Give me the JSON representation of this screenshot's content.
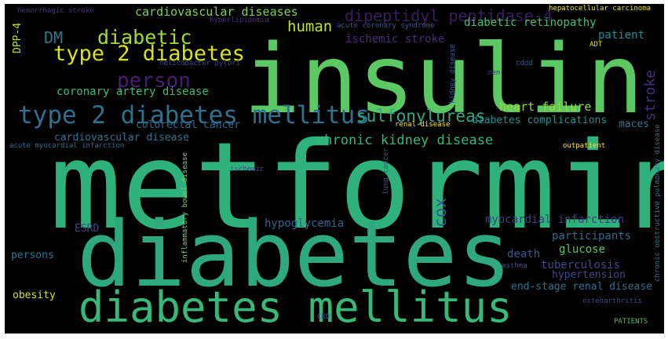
{
  "words": [
    {
      "text": "metformin",
      "color": "#2fb17b"
    },
    {
      "text": "insulin",
      "color": "#5cc863"
    },
    {
      "text": "diabetes",
      "color": "#2ea97f"
    },
    {
      "text": "diabetes mellitus",
      "color": "#37b878"
    },
    {
      "text": "type 2 diabetes mellitus",
      "color": "#2d718e"
    },
    {
      "text": "type 2 diabetes",
      "color": "#d8e219"
    },
    {
      "text": "person",
      "color": "#481d6f"
    },
    {
      "text": "diabetic",
      "color": "#a5db36"
    },
    {
      "text": "DM",
      "color": "#2a788e"
    },
    {
      "text": "dipeptidyl peptidase-4",
      "color": "#3b1c5e"
    },
    {
      "text": "sulfonylureas",
      "color": "#31a884"
    },
    {
      "text": "chronic kidney disease",
      "color": "#35b779"
    },
    {
      "text": "human",
      "color": "#bfe32d"
    },
    {
      "text": "cardiovascular diseases",
      "color": "#7ad151"
    },
    {
      "text": "coronary artery disease",
      "color": "#3cbb75"
    },
    {
      "text": "heart failure",
      "color": "#9ad935"
    },
    {
      "text": "stroke",
      "color": "#472d7b"
    },
    {
      "text": "cox",
      "color": "#38598c"
    },
    {
      "text": "hypoglycemia",
      "color": "#33638d"
    },
    {
      "text": "myocardial infarction",
      "color": "#443983"
    },
    {
      "text": "participants",
      "color": "#306a8e"
    },
    {
      "text": "tuberculosis",
      "color": "#3e4a89"
    },
    {
      "text": "diabetic retinopathy",
      "color": "#43bf71"
    },
    {
      "text": "patient",
      "color": "#23898e"
    },
    {
      "text": "ischemic stroke",
      "color": "#472d7b"
    },
    {
      "text": "diabetes complications",
      "color": "#20928c"
    },
    {
      "text": "colorectal cancer",
      "color": "#31688e"
    },
    {
      "text": "cardiovascular disease",
      "color": "#2c728e"
    },
    {
      "text": "maces",
      "color": "#2d708e"
    },
    {
      "text": "glucose",
      "color": "#55c667"
    },
    {
      "text": "death",
      "color": "#39558c"
    },
    {
      "text": "hypertension",
      "color": "#3f4889"
    },
    {
      "text": "end-stage renal disease",
      "color": "#2c738e"
    },
    {
      "text": "persons",
      "color": "#2a788e"
    },
    {
      "text": "ESRD",
      "color": "#3f4889"
    },
    {
      "text": "obesity",
      "color": "#d2e21b"
    },
    {
      "text": "DPP-4",
      "color": "#b5de2b"
    },
    {
      "text": "hemorrhagic stroke",
      "color": "#46327e"
    },
    {
      "text": "hyperlipidemia",
      "color": "#472d7b"
    },
    {
      "text": "acute coronary syndrome",
      "color": "#3b528b"
    },
    {
      "text": "hepatocellular carcinoma",
      "color": "#eae51a"
    },
    {
      "text": "helicobacter pylori",
      "color": "#404588"
    },
    {
      "text": "ADT",
      "color": "#e5e419"
    },
    {
      "text": "kidney disease",
      "color": "#355f8d"
    },
    {
      "text": "cddd",
      "color": "#3b528b"
    },
    {
      "text": "men",
      "color": "#482071"
    },
    {
      "text": "acute myocardial infarction",
      "color": "#2f6c8e"
    },
    {
      "text": "inflammatory bowel disease",
      "color": "#75d054"
    },
    {
      "text": "renal disease",
      "color": "#fde725"
    },
    {
      "text": "outpatient",
      "color": "#fde725"
    },
    {
      "text": "chronic obstructive pulmonary disease",
      "color": "#2b758e"
    },
    {
      "text": "ischemic",
      "color": "#3e4989"
    },
    {
      "text": "lung cancer",
      "color": "#3b528b"
    },
    {
      "text": "asthma",
      "color": "#3b528b"
    },
    {
      "text": "osteoarthritis",
      "color": "#3e4989"
    },
    {
      "text": "CKD",
      "color": "#39568c"
    },
    {
      "text": "PATIENTS",
      "color": "#46c06f"
    }
  ]
}
